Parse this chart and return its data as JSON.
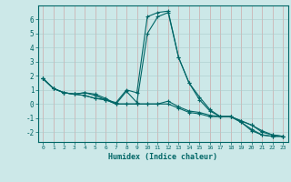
{
  "xlabel": "Humidex (Indice chaleur)",
  "background_color": "#cce8e8",
  "grid_color": "#aacccc",
  "line_color": "#006666",
  "xlim": [
    -0.5,
    23.5
  ],
  "ylim": [
    -2.7,
    7.0
  ],
  "xticks": [
    0,
    1,
    2,
    3,
    4,
    5,
    6,
    7,
    8,
    9,
    10,
    11,
    12,
    13,
    14,
    15,
    16,
    17,
    18,
    19,
    20,
    21,
    22,
    23
  ],
  "yticks": [
    -2,
    -1,
    0,
    1,
    2,
    3,
    4,
    5,
    6
  ],
  "series": [
    [
      1.8,
      1.1,
      0.8,
      0.7,
      0.8,
      0.6,
      0.3,
      0.1,
      1.0,
      0.8,
      6.2,
      6.5,
      6.6,
      3.3,
      1.5,
      0.5,
      -0.4,
      -0.9,
      -0.9,
      -1.3,
      -1.8,
      -2.2,
      -2.3,
      -2.3
    ],
    [
      1.8,
      1.1,
      0.8,
      0.7,
      0.8,
      0.7,
      0.4,
      0.0,
      0.9,
      0.1,
      5.0,
      6.2,
      6.5,
      3.3,
      1.5,
      0.3,
      -0.5,
      -0.9,
      -0.9,
      -1.3,
      -1.9,
      -2.2,
      -2.3,
      -2.3
    ],
    [
      1.8,
      1.1,
      0.8,
      0.7,
      0.6,
      0.4,
      0.3,
      0.0,
      0.0,
      0.0,
      0.0,
      0.0,
      0.2,
      -0.2,
      -0.5,
      -0.6,
      -0.8,
      -0.9,
      -0.9,
      -1.2,
      -1.5,
      -1.9,
      -2.2,
      -2.3
    ],
    [
      1.8,
      1.1,
      0.8,
      0.7,
      0.6,
      0.4,
      0.3,
      0.0,
      0.0,
      0.0,
      0.0,
      0.0,
      0.0,
      -0.3,
      -0.6,
      -0.7,
      -0.9,
      -0.9,
      -0.9,
      -1.2,
      -1.5,
      -2.0,
      -2.2,
      -2.3
    ]
  ]
}
